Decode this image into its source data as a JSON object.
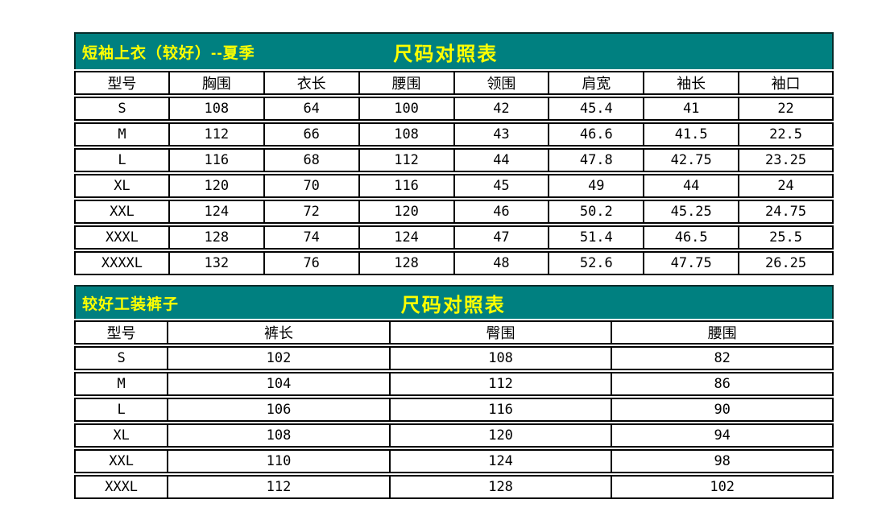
{
  "colors": {
    "band_bg": "#008080",
    "band_text": "#ffff00",
    "border": "#000000",
    "cell_bg": "#ffffff",
    "text": "#000000",
    "page_bg": "#ffffff"
  },
  "tables": [
    {
      "title": "短袖上衣（较好）--夏季",
      "subtitle": "尺码对照表",
      "columns": [
        "型号",
        "胸围",
        "衣长",
        "腰围",
        "领围",
        "肩宽",
        "袖长",
        "袖口"
      ],
      "rows": [
        [
          "S",
          "108",
          "64",
          "100",
          "42",
          "45.4",
          "41",
          "22"
        ],
        [
          "M",
          "112",
          "66",
          "108",
          "43",
          "46.6",
          "41.5",
          "22.5"
        ],
        [
          "L",
          "116",
          "68",
          "112",
          "44",
          "47.8",
          "42.75",
          "23.25"
        ],
        [
          "XL",
          "120",
          "70",
          "116",
          "45",
          "49",
          "44",
          "24"
        ],
        [
          "XXL",
          "124",
          "72",
          "120",
          "46",
          "50.2",
          "45.25",
          "24.75"
        ],
        [
          "XXXL",
          "128",
          "74",
          "124",
          "47",
          "51.4",
          "46.5",
          "25.5"
        ],
        [
          "XXXXL",
          "132",
          "76",
          "128",
          "48",
          "52.6",
          "47.75",
          "26.25"
        ]
      ]
    },
    {
      "title": "较好工装裤子",
      "subtitle": "尺码对照表",
      "columns": [
        "型号",
        "裤长",
        "臀围",
        "腰围"
      ],
      "rows": [
        [
          "S",
          "102",
          "108",
          "82"
        ],
        [
          "M",
          "104",
          "112",
          "86"
        ],
        [
          "L",
          "106",
          "116",
          "90"
        ],
        [
          "XL",
          "108",
          "120",
          "94"
        ],
        [
          "XXL",
          "110",
          "124",
          "98"
        ],
        [
          "XXXL",
          "112",
          "128",
          "102"
        ]
      ]
    }
  ]
}
